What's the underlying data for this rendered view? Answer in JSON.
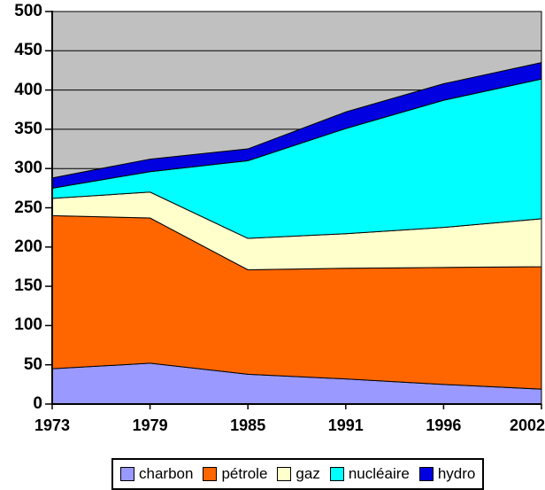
{
  "chart_data": {
    "type": "area",
    "stacked": true,
    "title": "",
    "xlabel": "",
    "ylabel": "",
    "categories": [
      "1973",
      "1979",
      "1985",
      "1991",
      "1996",
      "2002"
    ],
    "series": [
      {
        "name": "charbon",
        "color": "#9999FF",
        "values": [
          45,
          52,
          38,
          32,
          25,
          19
        ]
      },
      {
        "name": "pétrole",
        "color": "#FF6600",
        "values": [
          195,
          185,
          133,
          141,
          149,
          156
        ]
      },
      {
        "name": "gaz",
        "color": "#FFFFCC",
        "values": [
          22,
          33,
          40,
          44,
          51,
          61
        ]
      },
      {
        "name": "nucléaire",
        "color": "#00FFFF",
        "values": [
          13,
          26,
          99,
          134,
          162,
          178
        ]
      },
      {
        "name": "hydro",
        "color": "#0000E0",
        "values": [
          13,
          16,
          15,
          21,
          21,
          21
        ]
      }
    ],
    "stacked_totals": [
      288,
      312,
      325,
      372,
      408,
      435
    ],
    "ylim": [
      0,
      500
    ],
    "y_tick_step": 50,
    "y_ticks": [
      0,
      50,
      100,
      150,
      200,
      250,
      300,
      350,
      400,
      450,
      500
    ],
    "grid": true,
    "gridline_color": "#000000",
    "plot_background": "#C0C0C0",
    "outer_background": "#FFFFFF",
    "area_outline_color": "#000000",
    "legend_position": "bottom",
    "legend_labels": [
      "charbon",
      "pétrole",
      "gaz",
      "nucléaire",
      "hydro"
    ]
  }
}
